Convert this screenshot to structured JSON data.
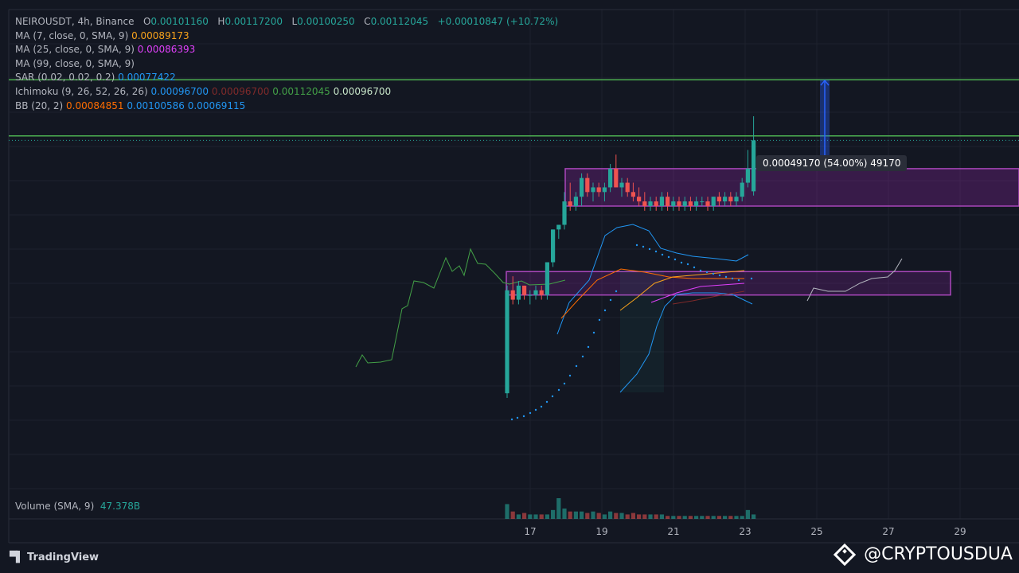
{
  "header": {
    "symbol": "NEIROUSDT, 4h, Binance",
    "o_label": "O",
    "o": "0.00101160",
    "h_label": "H",
    "h": "0.00117200",
    "l_label": "L",
    "l": "0.00100250",
    "c_label": "C",
    "c": "0.00112045",
    "change": "+0.00010847 (+10.72%)"
  },
  "indicators": {
    "ma7": {
      "label": "MA (7, close, 0, SMA, 9)",
      "value": "0.00089173",
      "color": "#f7a21b"
    },
    "ma25": {
      "label": "MA (25, close, 0, SMA, 9)",
      "value": "0.00086393",
      "color": "#e040fb"
    },
    "ma99": {
      "label": "MA (99, close, 0, SMA, 9)",
      "value": ""
    },
    "sar": {
      "label": "SAR (0.02, 0.02, 0.2)",
      "value": "0.00077422",
      "color": "#2196f3"
    },
    "ichimoku": {
      "label": "Ichimoku (9, 26, 52, 26, 26)",
      "v1": "0.00096700",
      "v2": "0.00096700",
      "v3": "0.00112045",
      "v4": "0.00096700"
    },
    "bb": {
      "label": "BB (20, 2)",
      "v1": "0.00084851",
      "v2": "0.00100586",
      "v3": "0.00069115"
    }
  },
  "volume": {
    "label": "Volume (SMA, 9)",
    "value": "47.378B"
  },
  "measure_label": "0.00049170 (54.00%) 49170",
  "x_ticks": [
    "17",
    "19",
    "21",
    "23",
    "25",
    "27",
    "29"
  ],
  "branding": {
    "tradingview": "TradingView",
    "watermark": "@CRYPTOUSDUA"
  },
  "colors": {
    "up": "#26a69a",
    "down": "#ef5350",
    "background": "#131722",
    "zone": "#9c27b0",
    "resistance": "#4caf50"
  },
  "chart_data": {
    "type": "candlestick",
    "timeframe": "4h",
    "candles": [
      {
        "o": 0.00058,
        "h": 0.00081,
        "l": 0.00057,
        "c": 0.0008
      },
      {
        "o": 0.0008,
        "h": 0.00083,
        "l": 0.00077,
        "c": 0.00078
      },
      {
        "o": 0.00078,
        "h": 0.00082,
        "l": 0.00077,
        "c": 0.00081
      },
      {
        "o": 0.00081,
        "h": 0.00081,
        "l": 0.00078,
        "c": 0.00079
      },
      {
        "o": 0.00079,
        "h": 0.0008,
        "l": 0.00077,
        "c": 0.00079
      },
      {
        "o": 0.00079,
        "h": 0.00081,
        "l": 0.00078,
        "c": 0.0008
      },
      {
        "o": 0.0008,
        "h": 0.00081,
        "l": 0.00078,
        "c": 0.00079
      },
      {
        "o": 0.00079,
        "h": 0.00086,
        "l": 0.00078,
        "c": 0.00086
      },
      {
        "o": 0.00086,
        "h": 0.00093,
        "l": 0.00085,
        "c": 0.00093
      },
      {
        "o": 0.00093,
        "h": 0.00094,
        "l": 0.00091,
        "c": 0.00094
      },
      {
        "o": 0.00094,
        "h": 0.00101,
        "l": 0.00093,
        "c": 0.00099
      },
      {
        "o": 0.00099,
        "h": 0.00103,
        "l": 0.00097,
        "c": 0.00098
      },
      {
        "o": 0.00098,
        "h": 0.00101,
        "l": 0.00097,
        "c": 0.001
      },
      {
        "o": 0.001,
        "h": 0.00105,
        "l": 0.00098,
        "c": 0.00104
      },
      {
        "o": 0.00104,
        "h": 0.00105,
        "l": 0.001,
        "c": 0.00101
      },
      {
        "o": 0.00101,
        "h": 0.00103,
        "l": 0.00099,
        "c": 0.00102
      },
      {
        "o": 0.00102,
        "h": 0.00103,
        "l": 0.001,
        "c": 0.00101
      },
      {
        "o": 0.00101,
        "h": 0.00103,
        "l": 0.00099,
        "c": 0.00102
      },
      {
        "o": 0.00102,
        "h": 0.00107,
        "l": 0.00101,
        "c": 0.00106
      },
      {
        "o": 0.00106,
        "h": 0.00109,
        "l": 0.00102,
        "c": 0.00102
      },
      {
        "o": 0.00102,
        "h": 0.00104,
        "l": 0.001,
        "c": 0.00103
      },
      {
        "o": 0.00103,
        "h": 0.00104,
        "l": 0.001,
        "c": 0.00101
      },
      {
        "o": 0.00101,
        "h": 0.00103,
        "l": 0.00099,
        "c": 0.001
      },
      {
        "o": 0.001,
        "h": 0.00102,
        "l": 0.00098,
        "c": 0.00099
      },
      {
        "o": 0.00099,
        "h": 0.00101,
        "l": 0.00097,
        "c": 0.00098
      },
      {
        "o": 0.00098,
        "h": 0.001,
        "l": 0.00097,
        "c": 0.00099
      },
      {
        "o": 0.00099,
        "h": 0.001,
        "l": 0.00097,
        "c": 0.00098
      },
      {
        "o": 0.00098,
        "h": 0.00101,
        "l": 0.00097,
        "c": 0.001
      },
      {
        "o": 0.001,
        "h": 0.00101,
        "l": 0.00097,
        "c": 0.00098
      },
      {
        "o": 0.00098,
        "h": 0.001,
        "l": 0.00097,
        "c": 0.00099
      },
      {
        "o": 0.00099,
        "h": 0.001,
        "l": 0.00097,
        "c": 0.00098
      },
      {
        "o": 0.00098,
        "h": 0.001,
        "l": 0.00097,
        "c": 0.00099
      },
      {
        "o": 0.00099,
        "h": 0.001,
        "l": 0.00097,
        "c": 0.00098
      },
      {
        "o": 0.00098,
        "h": 0.001,
        "l": 0.00097,
        "c": 0.00099
      },
      {
        "o": 0.00099,
        "h": 0.001,
        "l": 0.00098,
        "c": 0.00099
      },
      {
        "o": 0.00099,
        "h": 0.001,
        "l": 0.00097,
        "c": 0.00098
      },
      {
        "o": 0.00098,
        "h": 0.001,
        "l": 0.00097,
        "c": 0.001
      },
      {
        "o": 0.001,
        "h": 0.00101,
        "l": 0.00098,
        "c": 0.00099
      },
      {
        "o": 0.00099,
        "h": 0.00101,
        "l": 0.00098,
        "c": 0.001
      },
      {
        "o": 0.001,
        "h": 0.00101,
        "l": 0.00098,
        "c": 0.00099
      },
      {
        "o": 0.00099,
        "h": 0.00101,
        "l": 0.00098,
        "c": 0.001
      },
      {
        "o": 0.001,
        "h": 0.00104,
        "l": 0.00099,
        "c": 0.00103
      },
      {
        "o": 0.00103,
        "h": 0.0011,
        "l": 0.00102,
        "c": 0.00106
      },
      {
        "o": 0.0010116,
        "h": 0.001172,
        "l": 0.0010025,
        "c": 0.00112045
      }
    ],
    "volumes": [
      10,
      5,
      3,
      4,
      3,
      3,
      3,
      3,
      6,
      14,
      7,
      5,
      5,
      5,
      4,
      5,
      4,
      3,
      5,
      4,
      4,
      3,
      4,
      3,
      3,
      3,
      3,
      3,
      2,
      2,
      2,
      2,
      2,
      2,
      2,
      2,
      2,
      2,
      2,
      2,
      2,
      2,
      6,
      3
    ],
    "resistance_levels": [
      0.00125,
      0.00113
    ],
    "zones": [
      {
        "label": "",
        "top": 0.00106,
        "bottom": 0.00098
      },
      {
        "label": "",
        "top": 0.00084,
        "bottom": 0.00079
      }
    ],
    "ylim": [
      0.0004,
      0.0014
    ],
    "x_tick_labels": [
      "17",
      "19",
      "21",
      "23",
      "25",
      "27",
      "29"
    ]
  }
}
